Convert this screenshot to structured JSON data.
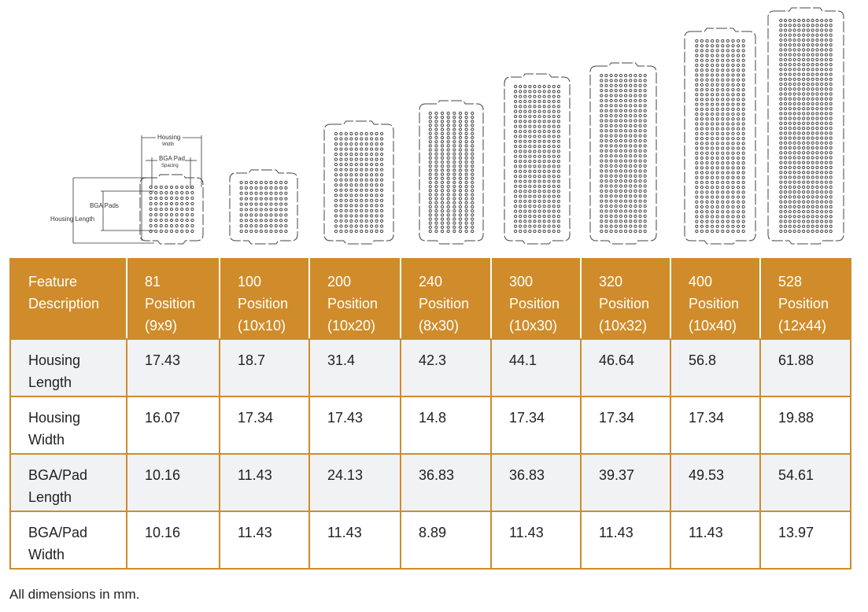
{
  "diagram": {
    "labels": {
      "housing_width": "Housing",
      "housing_width_sub": "Width",
      "bga_pad": "BGA Pad",
      "bga_pad_sub": "Spacing",
      "bga_pads": "BGA Pads",
      "housing_length": "Housing Length"
    },
    "packages": [
      {
        "positions": 81,
        "cols": 9,
        "rows": 9
      },
      {
        "positions": 100,
        "cols": 10,
        "rows": 10
      },
      {
        "positions": 200,
        "cols": 10,
        "rows": 20
      },
      {
        "positions": 240,
        "cols": 8,
        "rows": 30
      },
      {
        "positions": 300,
        "cols": 10,
        "rows": 30
      },
      {
        "positions": 320,
        "cols": 10,
        "rows": 32
      },
      {
        "positions": 400,
        "cols": 10,
        "rows": 40
      },
      {
        "positions": 528,
        "cols": 12,
        "rows": 44
      }
    ]
  },
  "table": {
    "header": [
      [
        "Feature",
        "Description"
      ],
      [
        "81",
        "Position",
        "(9x9)"
      ],
      [
        "100",
        "Position",
        "(10x10)"
      ],
      [
        "200",
        "Position",
        "(10x20)"
      ],
      [
        "240",
        "Position",
        "(8x30)"
      ],
      [
        "300",
        "Position",
        "(10x30)"
      ],
      [
        "320",
        "Position",
        "(10x32)"
      ],
      [
        "400",
        "Position",
        "(10x40)"
      ],
      [
        "528",
        "Position",
        "(12x44)"
      ]
    ],
    "rows": [
      {
        "label": [
          "Housing",
          "Length"
        ],
        "values": [
          "17.43",
          "18.7",
          "31.4",
          "42.3",
          "44.1",
          "46.64",
          "56.8",
          "61.88"
        ]
      },
      {
        "label": [
          "Housing",
          "Width"
        ],
        "values": [
          "16.07",
          "17.34",
          "17.43",
          "14.8",
          "17.34",
          "17.34",
          "17.34",
          "19.88"
        ]
      },
      {
        "label": [
          "BGA/Pad",
          "Length"
        ],
        "values": [
          "10.16",
          "11.43",
          "24.13",
          "36.83",
          "36.83",
          "39.37",
          "49.53",
          "54.61"
        ]
      },
      {
        "label": [
          "BGA/Pad",
          "Width"
        ],
        "values": [
          "10.16",
          "11.43",
          "11.43",
          "8.89",
          "11.43",
          "11.43",
          "11.43",
          "13.97"
        ]
      }
    ]
  },
  "note": "All dimensions in mm.",
  "colors": {
    "accent": "#d08c2a",
    "row_alt": "#f1f2f4",
    "dot": "#444444"
  }
}
